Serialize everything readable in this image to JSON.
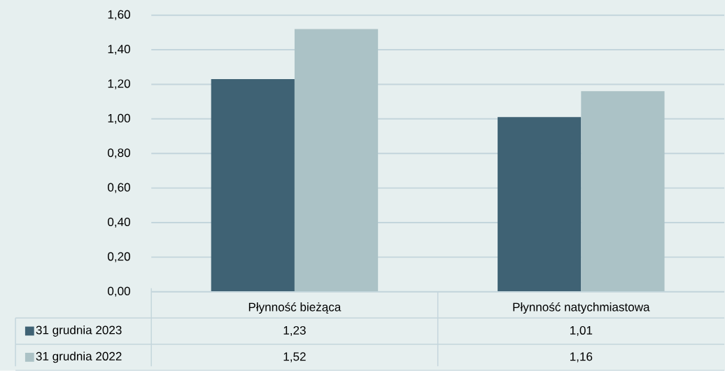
{
  "chart_data": {
    "type": "bar",
    "categories": [
      "Płynność bieżąca",
      "Płynność natychmiastowa"
    ],
    "series": [
      {
        "name": "31 grudnia 2023",
        "color": "#3f6274",
        "values": [
          1.23,
          1.01
        ],
        "value_labels": [
          "1,23",
          "1,01"
        ]
      },
      {
        "name": "31 grudnia 2022",
        "color": "#abc2c6",
        "values": [
          1.52,
          1.16
        ],
        "value_labels": [
          "1,52",
          "1,16"
        ]
      }
    ],
    "ylim": [
      0,
      1.6
    ],
    "yticks": [
      {
        "value": 0,
        "label": "0,00"
      },
      {
        "value": 0.2,
        "label": "0,20"
      },
      {
        "value": 0.4,
        "label": "0,40"
      },
      {
        "value": 0.6,
        "label": "0,60"
      },
      {
        "value": 0.8,
        "label": "0,80"
      },
      {
        "value": 1.0,
        "label": "1,00"
      },
      {
        "value": 1.2,
        "label": "1,20"
      },
      {
        "value": 1.4,
        "label": "1,40"
      },
      {
        "value": 1.6,
        "label": "1,60"
      }
    ],
    "grid": "y",
    "legend": "bottom left"
  }
}
